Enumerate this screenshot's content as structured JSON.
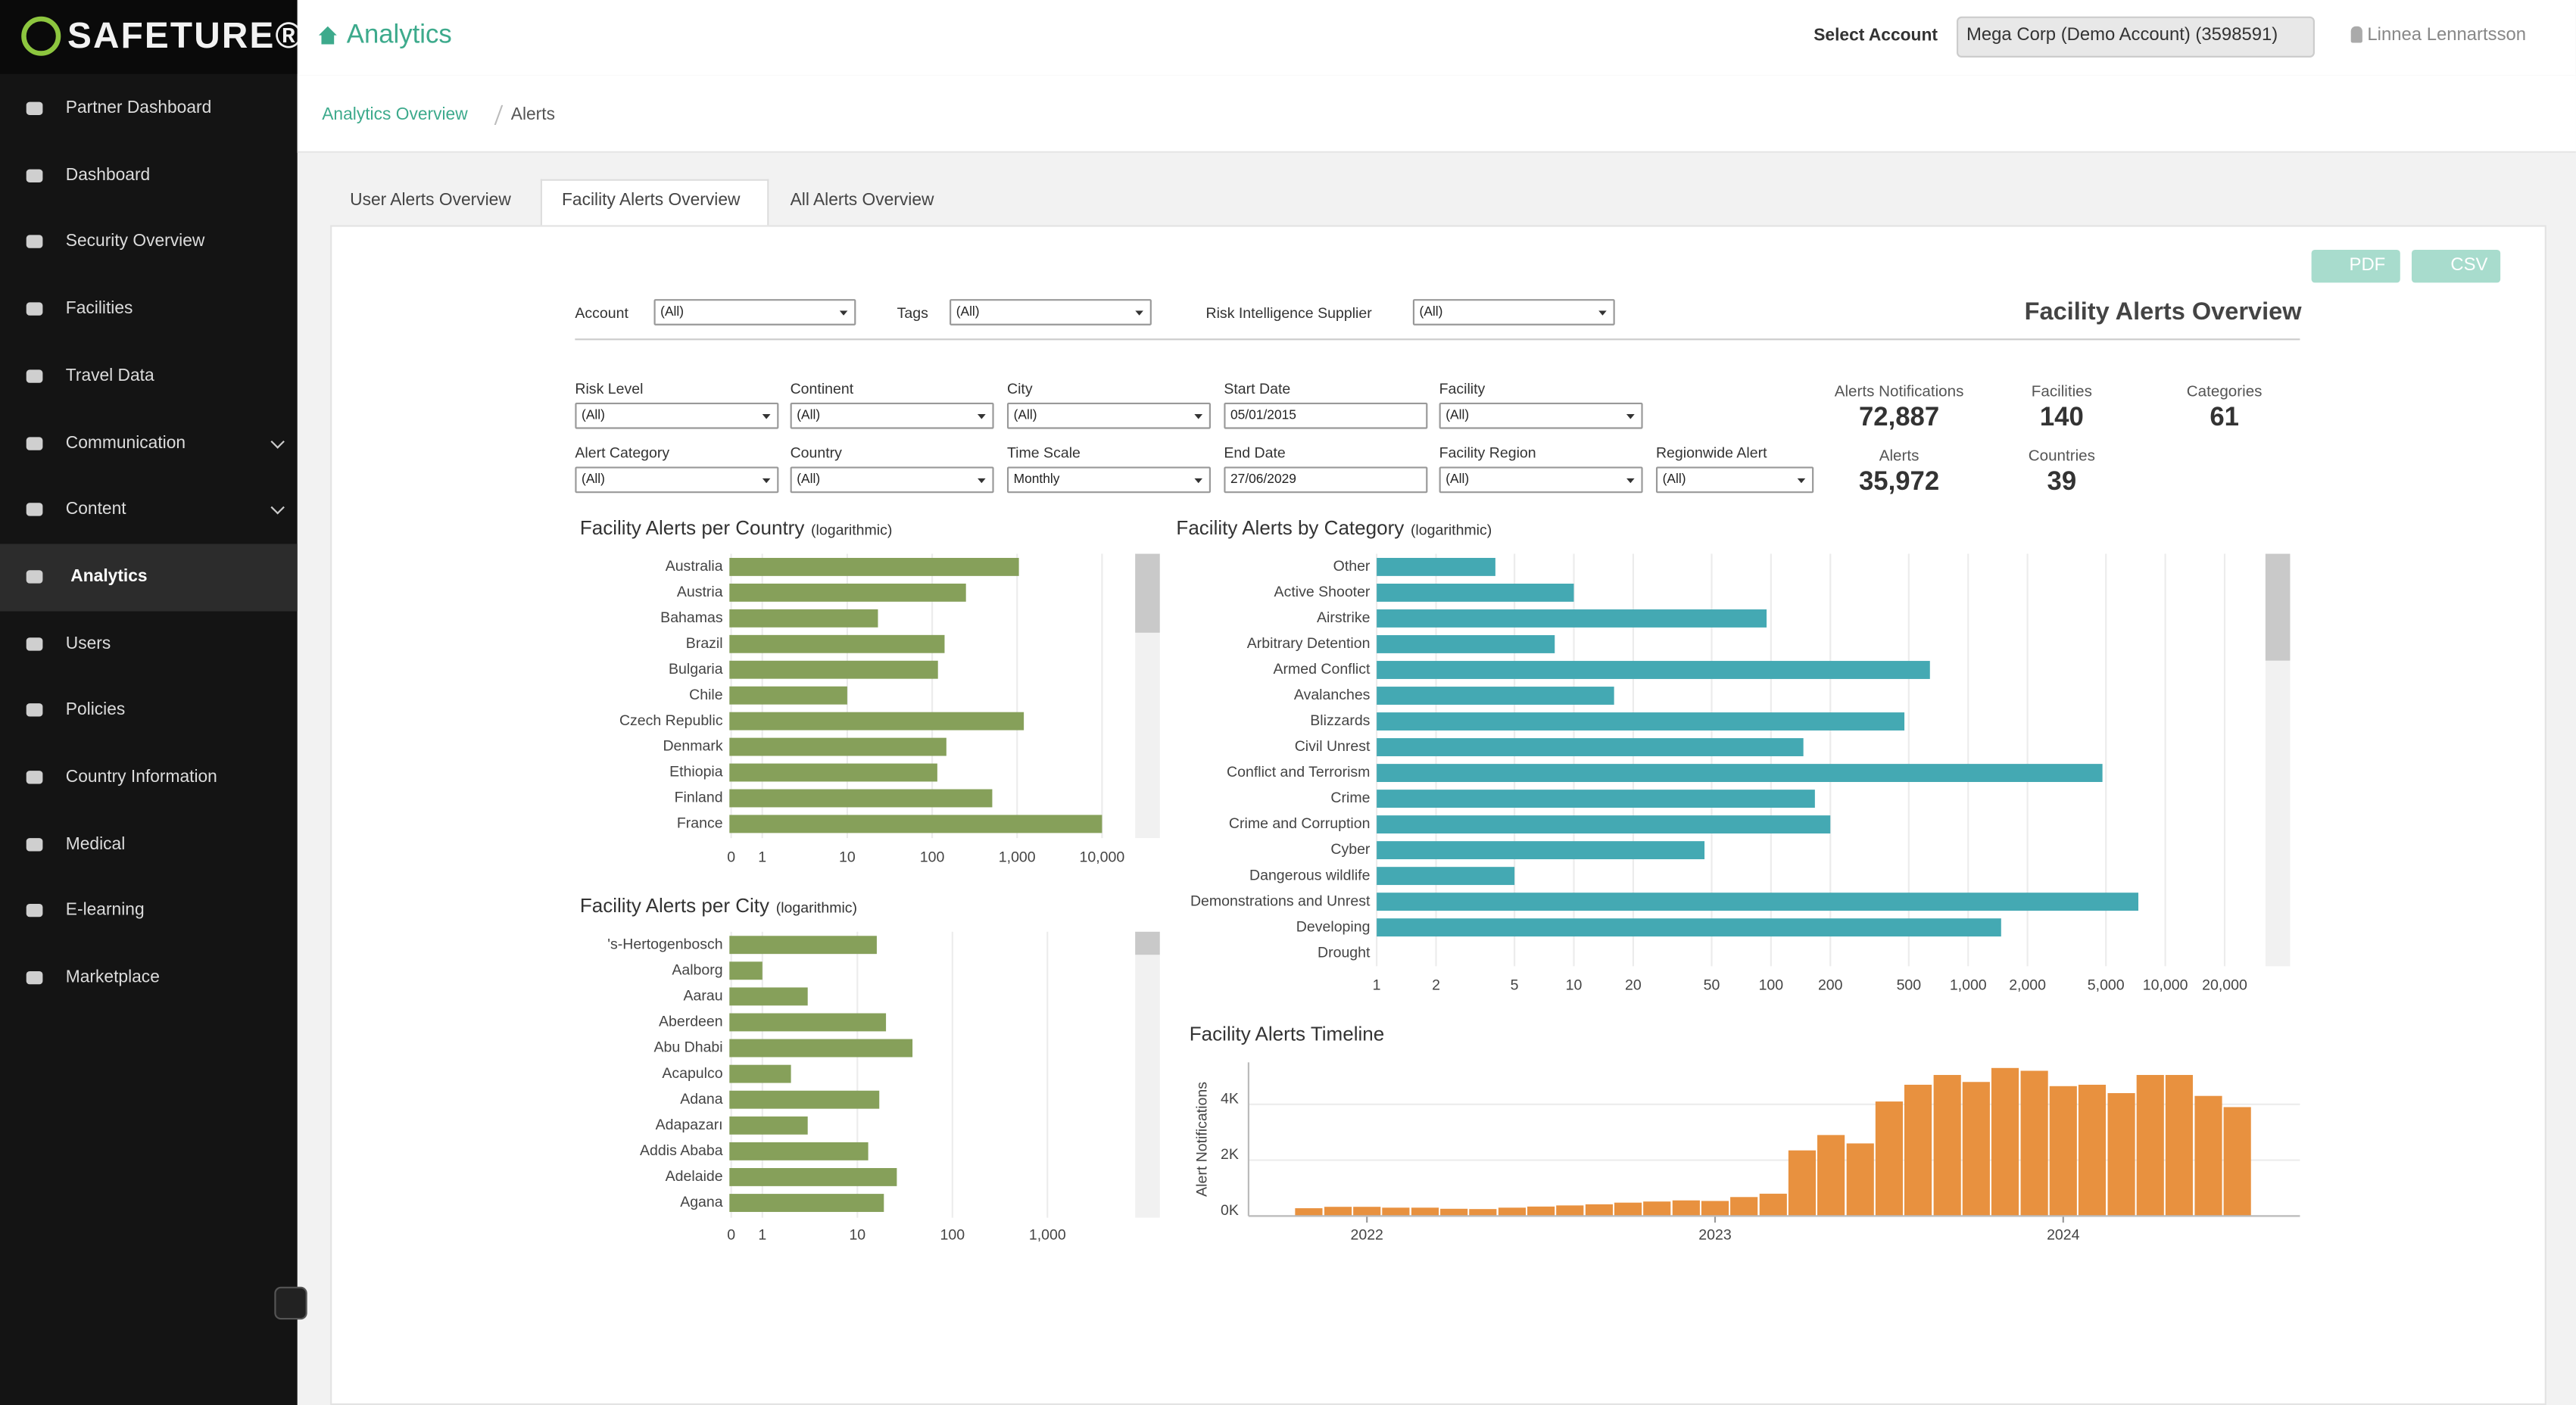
{
  "sidebar": {
    "logo": "SAFETURE®",
    "items": [
      "Partner Dashboard",
      "Dashboard",
      "Security Overview",
      "Facilities",
      "Travel Data",
      "Communication",
      "Content",
      "Analytics",
      "Users",
      "Policies",
      "Country Information",
      "Medical",
      "E-learning",
      "Marketplace"
    ]
  },
  "header": {
    "title": "Analytics",
    "account_label": "Select Account",
    "account": "Mega Corp (Demo Account) (3598591)",
    "user": "Linnea Lennartsson"
  },
  "breadcrumb": [
    "Analytics Overview",
    "Alerts"
  ],
  "tabs": [
    "User Alerts Overview",
    "Facility Alerts Overview",
    "All Alerts Overview"
  ],
  "buttons": [
    "PDF",
    "CSV"
  ],
  "dashboard_title": "Facility Alerts Overview",
  "top_filters": [
    {
      "label": "Account",
      "value": "(All)"
    },
    {
      "label": "Tags",
      "value": "(All)"
    },
    {
      "label": "Risk Intelligence Supplier",
      "value": "(All)"
    }
  ],
  "filters": [
    {
      "label": "Risk Level",
      "value": "(All)"
    },
    {
      "label": "Continent",
      "value": "(All)"
    },
    {
      "label": "City",
      "value": "(All)"
    },
    {
      "label": "Start Date",
      "value": "05/01/2015"
    },
    {
      "label": "Facility",
      "value": "(All)"
    },
    {
      "label": "Alert Category",
      "value": "(All)"
    },
    {
      "label": "Country",
      "value": "(All)"
    },
    {
      "label": "Time Scale",
      "value": "Monthly"
    },
    {
      "label": "End Date",
      "value": "27/06/2029"
    },
    {
      "label": "Facility Region",
      "value": "(All)"
    },
    {
      "label": "Regionwide Alert",
      "value": "(All)"
    }
  ],
  "kpis": [
    {
      "label": "Alerts Notifications",
      "value": "72,887"
    },
    {
      "label": "Facilities",
      "value": "140"
    },
    {
      "label": "Categories",
      "value": "61"
    },
    {
      "label": "Alerts",
      "value": "35,972"
    },
    {
      "label": "Countries",
      "value": "39"
    }
  ],
  "chart_data": [
    {
      "type": "bar",
      "orientation": "horizontal",
      "title": "Facility Alerts per Country",
      "subtitle": "(logarithmic)",
      "log_x": true,
      "grid": true,
      "color": "#86a05a",
      "categories": [
        "Australia",
        "Austria",
        "Bahamas",
        "Brazil",
        "Bulgaria",
        "Chile",
        "Czech Republic",
        "Denmark",
        "Ethiopia",
        "Finland",
        "France"
      ],
      "values": [
        1050,
        250,
        23,
        140,
        117,
        10,
        1200,
        147,
        115,
        510,
        10000
      ],
      "xlim": [
        0.41,
        23500
      ],
      "xticks": [
        {
          "value": 0.43,
          "label": "0"
        },
        1,
        10,
        100,
        {
          "value": 1000,
          "label": "1,000"
        },
        {
          "value": 10000,
          "label": "10,000"
        }
      ]
    },
    {
      "type": "bar",
      "orientation": "horizontal",
      "title": "Facility Alerts per City",
      "subtitle": "(logarithmic)",
      "log_x": true,
      "grid": true,
      "color": "#86a05a",
      "categories": [
        "'s-Hertogenbosch",
        "Aalborg",
        "Aarau",
        "Aberdeen",
        "Abu Dhabi",
        "Acapulco",
        "Adana",
        "Adapazarı",
        "Addis Ababa",
        "Adelaide",
        "Agana"
      ],
      "values": [
        16,
        1,
        3,
        20,
        38,
        2,
        17,
        3,
        13,
        26,
        19
      ],
      "xlim": [
        0.45,
        12000
      ],
      "xticks": [
        {
          "value": 0.47,
          "label": "0"
        },
        1,
        10,
        100,
        {
          "value": 1000,
          "label": "1,000"
        }
      ]
    },
    {
      "type": "bar",
      "orientation": "horizontal",
      "title": "Facility Alerts by Category",
      "subtitle": "(logarithmic)",
      "log_x": true,
      "grid": true,
      "color": "#44a9b3",
      "categories": [
        "Other",
        "Active Shooter",
        "Airstrike",
        "Arbitrary Detention",
        "Armed Conflict",
        "Avalanches",
        "Blizzards",
        "Civil Unrest",
        "Conflict and Terrorism",
        "Crime",
        "Crime and Corruption",
        "Cyber",
        "Dangerous wildlife",
        "Demonstrations and Unrest",
        "Developing",
        "Drought"
      ],
      "values": [
        4,
        10,
        95,
        8,
        640,
        16,
        475,
        146,
        4800,
        167,
        200,
        46,
        5,
        7300,
        1470,
        1
      ],
      "xlim": [
        1,
        31600
      ],
      "xticks": [
        1,
        2,
        5,
        10,
        20,
        50,
        100,
        200,
        500,
        {
          "value": 1000,
          "label": "1,000"
        },
        {
          "value": 2000,
          "label": "2,000"
        },
        {
          "value": 5000,
          "label": "5,000"
        },
        {
          "value": 10000,
          "label": "10,000"
        },
        {
          "value": 20000,
          "label": "20,000"
        }
      ]
    },
    {
      "type": "column",
      "title": "Facility Alerts Timeline",
      "y_label": "Alert Notifications",
      "grid": true,
      "color": "#e8913f",
      "x": [
        2021.833,
        2021.917,
        2022.0,
        2022.083,
        2022.167,
        2022.25,
        2022.333,
        2022.417,
        2022.5,
        2022.583,
        2022.667,
        2022.75,
        2022.833,
        2022.917,
        2023.0,
        2023.083,
        2023.167,
        2023.25,
        2023.333,
        2023.417,
        2023.5,
        2023.583,
        2023.667,
        2023.75,
        2023.833,
        2023.917,
        2024.0,
        2024.083,
        2024.167,
        2024.25,
        2024.333,
        2024.417,
        2024.5
      ],
      "values": [
        280,
        330,
        330,
        300,
        300,
        260,
        250,
        300,
        340,
        380,
        420,
        480,
        520,
        560,
        540,
        680,
        800,
        2350,
        2900,
        2600,
        4100,
        4700,
        5050,
        4800,
        5300,
        5200,
        4650,
        4700,
        4400,
        5050,
        5050,
        4300,
        3900
      ],
      "xlim": [
        2021.66,
        2024.68
      ],
      "xticks": [
        2022,
        2023,
        2024
      ],
      "ylim": [
        0,
        5500
      ],
      "yticks": [
        {
          "value": 0,
          "label": "0K"
        },
        {
          "value": 2000,
          "label": "2K"
        },
        {
          "value": 4000,
          "label": "4K"
        }
      ]
    }
  ]
}
